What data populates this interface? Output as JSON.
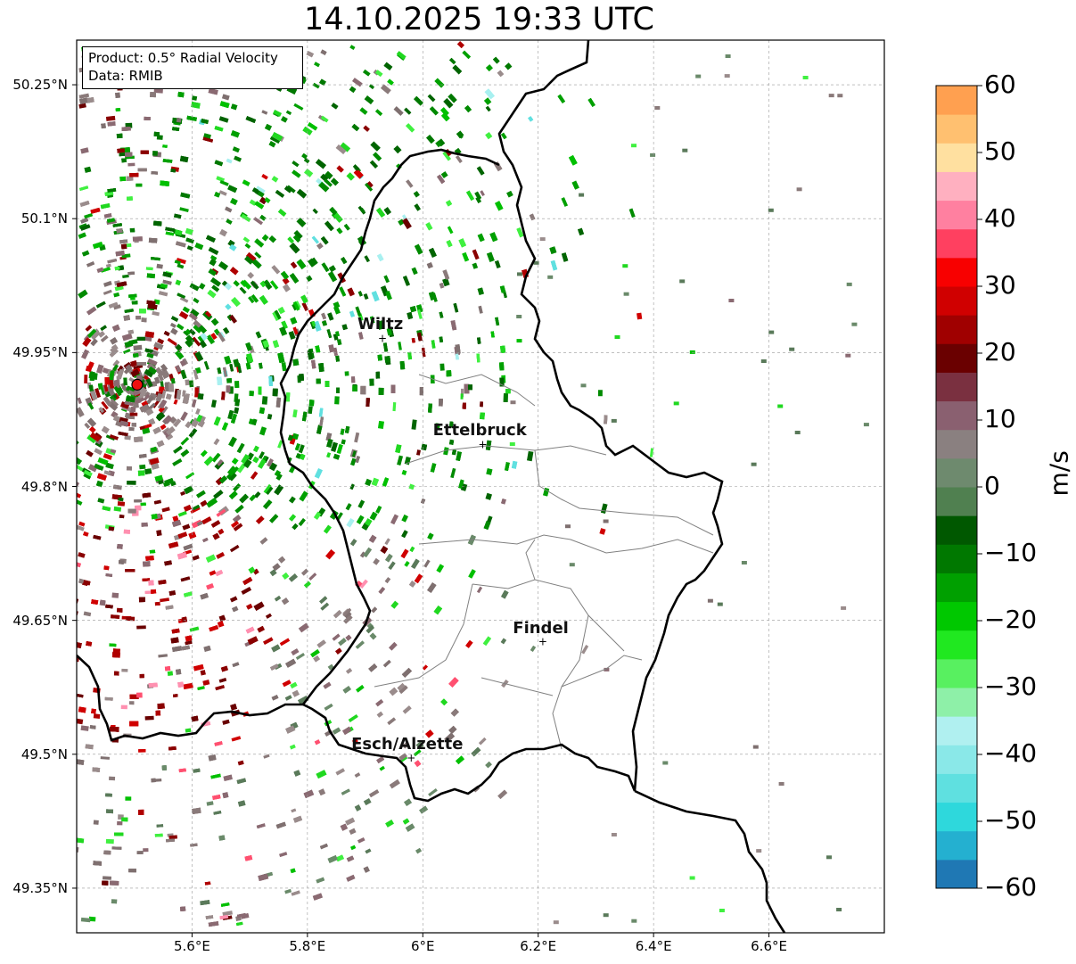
{
  "title": "14.10.2025 19:33 UTC",
  "info": {
    "product": "Product: 0.5° Radial Velocity",
    "data": "Data: RMIB"
  },
  "map": {
    "lon_range": [
      5.4,
      6.8
    ],
    "lat_range": [
      49.3,
      50.3
    ],
    "lat_ticks": [
      "50.25°N",
      "50.1°N",
      "49.95°N",
      "49.8°N",
      "49.65°N",
      "49.5°N",
      "49.35°N"
    ],
    "lon_ticks": [
      "5.6°E",
      "5.8°E",
      "6°E",
      "6.2°E",
      "6.4°E",
      "6.6°E"
    ],
    "grid": true,
    "radar_site": {
      "lon": 5.505,
      "lat": 49.914
    }
  },
  "cities": [
    {
      "name": "Wiltz",
      "lon": 5.93,
      "lat": 49.966
    },
    {
      "name": "Ettelbruck",
      "lon": 6.104,
      "lat": 49.847
    },
    {
      "name": "Findel",
      "lon": 6.208,
      "lat": 49.626
    },
    {
      "name": "Esch/Alzette",
      "lon": 5.98,
      "lat": 49.496
    }
  ],
  "colorbar": {
    "min": -60,
    "max": 60,
    "ticks": [
      "60",
      "50",
      "40",
      "30",
      "20",
      "10",
      "0",
      "−10",
      "−20",
      "−30",
      "−40",
      "−50",
      "−60"
    ],
    "unit": "m/s",
    "colors": [
      "#1f78b4",
      "#24b0d0",
      "#2ed8dc",
      "#5fe0e0",
      "#8ae8e8",
      "#b0f0f0",
      "#8ef0a8",
      "#58f060",
      "#20e820",
      "#00c800",
      "#00a000",
      "#007800",
      "#005800",
      "#508050",
      "#6e8a6e",
      "#8a8080",
      "#8a6070",
      "#7a3040",
      "#6a0000",
      "#a00000",
      "#d00000",
      "#f80000",
      "#ff4060",
      "#ff80a0",
      "#ffb0c0",
      "#ffe0a0",
      "#ffc070",
      "#ffa050"
    ]
  }
}
